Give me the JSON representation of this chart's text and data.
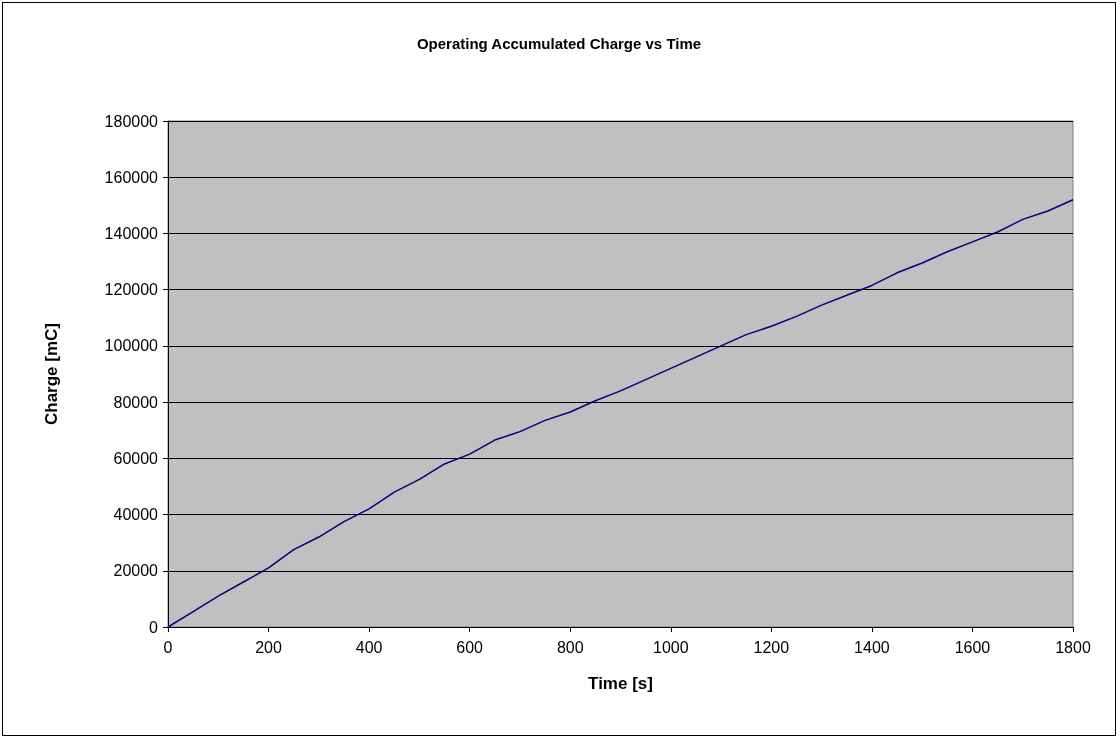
{
  "chart_data": {
    "type": "line",
    "title": "Operating Accumulated Charge vs Time",
    "xlabel": "Time [s]",
    "ylabel": "Charge [mC]",
    "x": [
      0,
      50,
      100,
      150,
      200,
      250,
      300,
      350,
      400,
      450,
      500,
      550,
      600,
      650,
      700,
      750,
      800,
      850,
      900,
      950,
      1000,
      1050,
      1100,
      1150,
      1200,
      1250,
      1300,
      1350,
      1400,
      1450,
      1500,
      1550,
      1600,
      1650,
      1700,
      1750,
      1800
    ],
    "series": [
      {
        "color": "#000080",
        "values": [
          0,
          5500,
          11000,
          16000,
          21000,
          27500,
          32000,
          37500,
          42000,
          48000,
          52500,
          58000,
          61500,
          66500,
          69500,
          73500,
          76500,
          80500,
          84000,
          88000,
          92000,
          96000,
          100000,
          104000,
          107000,
          110500,
          114500,
          118000,
          121500,
          126000,
          129500,
          133500,
          137000,
          140500,
          145000,
          148000,
          152000
        ]
      }
    ],
    "xlim": [
      0,
      1800
    ],
    "xticks": [
      0,
      200,
      400,
      600,
      800,
      1000,
      1200,
      1400,
      1600,
      1800
    ],
    "ylim": [
      0,
      180000
    ],
    "yticks": [
      0,
      20000,
      40000,
      60000,
      80000,
      100000,
      120000,
      140000,
      160000,
      180000
    ],
    "grid": "y",
    "marker": "none",
    "line_style": "solid"
  }
}
